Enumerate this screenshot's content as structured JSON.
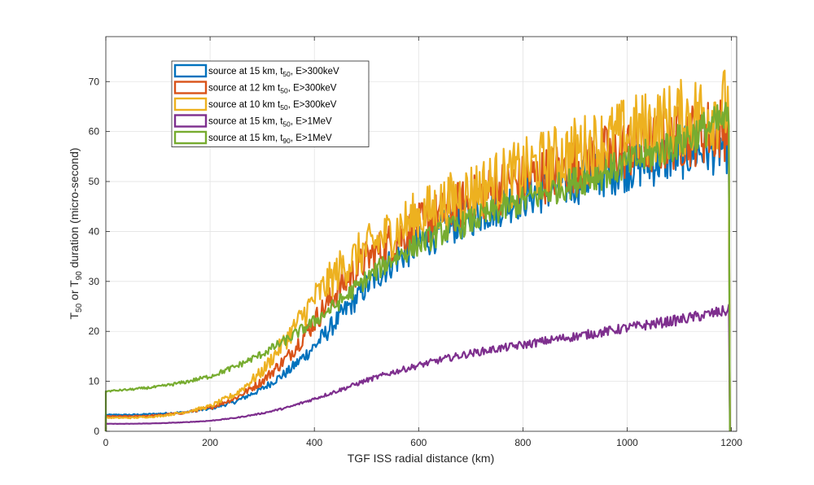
{
  "chart_data": {
    "type": "line",
    "title": "",
    "xlabel": "TGF ISS radial distance (km)",
    "ylabel": {
      "parts": [
        "T",
        "50",
        " or T",
        "90",
        " duration (micro-second)"
      ]
    },
    "xlim": [
      0,
      1210
    ],
    "ylim": [
      0,
      79
    ],
    "xticks": [
      0,
      200,
      400,
      600,
      800,
      1000,
      1200
    ],
    "yticks": [
      0,
      10,
      20,
      30,
      40,
      50,
      60,
      70
    ],
    "grid": true,
    "legend_position": "top-left",
    "series": [
      {
        "name": {
          "pre": "source at 15 km, t",
          "sub": "50",
          "post": ", E>300keV"
        },
        "color": "#0072BD",
        "noise": 0.06,
        "x": [
          0,
          50,
          100,
          150,
          200,
          250,
          300,
          350,
          400,
          450,
          500,
          550,
          600,
          650,
          700,
          750,
          800,
          850,
          900,
          950,
          1000,
          1050,
          1100,
          1150,
          1195
        ],
        "y": [
          3.3,
          3.3,
          3.5,
          3.8,
          4.5,
          6.0,
          8.5,
          12.0,
          17.0,
          23.0,
          29.0,
          34.0,
          37.5,
          40.5,
          43.0,
          45.0,
          47.0,
          48.5,
          50.0,
          51.5,
          53.0,
          54.0,
          55.5,
          56.5,
          57.0
        ]
      },
      {
        "name": {
          "pre": "source at 12 km t",
          "sub": "50",
          "post": ", E>300keV"
        },
        "color": "#D95319",
        "noise": 0.07,
        "x": [
          0,
          50,
          100,
          150,
          200,
          250,
          300,
          350,
          400,
          450,
          500,
          550,
          600,
          650,
          700,
          750,
          800,
          850,
          900,
          950,
          1000,
          1050,
          1100,
          1150,
          1195
        ],
        "y": [
          3.0,
          3.0,
          3.2,
          3.7,
          4.7,
          6.7,
          10.0,
          15.0,
          22.0,
          29.0,
          34.5,
          38.0,
          41.0,
          44.0,
          46.0,
          48.5,
          50.0,
          51.5,
          53.5,
          55.0,
          56.5,
          57.5,
          59.0,
          60.0,
          61.0
        ]
      },
      {
        "name": {
          "pre": "source at 10 km t",
          "sub": "50",
          "post": ", E>300keV"
        },
        "color": "#EDB120",
        "noise": 0.08,
        "x": [
          0,
          50,
          100,
          150,
          200,
          250,
          300,
          350,
          400,
          450,
          500,
          550,
          600,
          650,
          700,
          750,
          800,
          850,
          900,
          950,
          1000,
          1050,
          1100,
          1150,
          1195
        ],
        "y": [
          2.7,
          2.7,
          3.0,
          3.8,
          5.0,
          7.5,
          12.0,
          19.0,
          26.5,
          32.5,
          36.5,
          40.0,
          43.0,
          45.5,
          48.0,
          50.0,
          52.0,
          54.0,
          56.0,
          57.5,
          59.5,
          61.0,
          62.5,
          64.0,
          65.0
        ]
      },
      {
        "name": {
          "pre": "source at 15 km, t",
          "sub": "50",
          "post": ", E>1MeV"
        },
        "color": "#7E2F8E",
        "noise": 0.03,
        "x": [
          0,
          50,
          100,
          150,
          200,
          250,
          300,
          350,
          400,
          450,
          500,
          550,
          600,
          650,
          700,
          750,
          800,
          850,
          900,
          950,
          1000,
          1050,
          1100,
          1150,
          1195
        ],
        "y": [
          1.5,
          1.5,
          1.6,
          1.8,
          2.1,
          2.7,
          3.6,
          4.8,
          6.5,
          8.3,
          10.2,
          11.8,
          13.2,
          14.5,
          15.6,
          16.5,
          17.3,
          18.2,
          19.0,
          19.8,
          20.7,
          21.5,
          22.3,
          23.3,
          24.2
        ]
      },
      {
        "name": {
          "pre": "source at 15 km, t",
          "sub": "90",
          "post": ", E>1MeV"
        },
        "color": "#77AC30",
        "noise": 0.04,
        "x": [
          0,
          50,
          100,
          150,
          200,
          250,
          300,
          350,
          400,
          450,
          500,
          550,
          600,
          650,
          700,
          750,
          800,
          850,
          900,
          950,
          1000,
          1050,
          1100,
          1150,
          1195
        ],
        "y": [
          8.0,
          8.4,
          8.9,
          9.8,
          11.0,
          13.0,
          15.5,
          18.5,
          22.0,
          26.0,
          30.5,
          34.5,
          37.5,
          40.0,
          42.0,
          44.0,
          46.0,
          48.0,
          50.0,
          51.5,
          53.5,
          55.5,
          58.0,
          60.5,
          62.5
        ]
      }
    ]
  }
}
